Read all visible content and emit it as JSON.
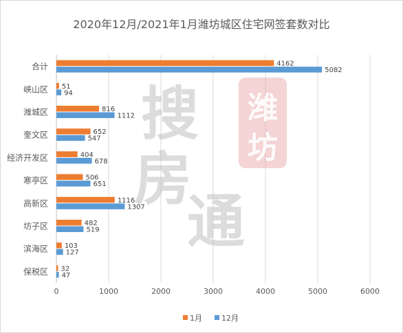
{
  "chart_data": {
    "type": "bar",
    "orientation": "horizontal",
    "title": "2020年12月/2021年1月潍坊城区住宅网签套数对比",
    "categories": [
      "合计",
      "峡山区",
      "潍城区",
      "奎文区",
      "经济开发区",
      "寒亭区",
      "高新区",
      "坊子区",
      "滨海区",
      "保税区"
    ],
    "series": [
      {
        "name": "1月",
        "color": "#ED7D31",
        "values": [
          4162,
          51,
          816,
          652,
          404,
          506,
          1116,
          482,
          103,
          32
        ]
      },
      {
        "name": "12月",
        "color": "#5B9BD5",
        "values": [
          5082,
          94,
          1112,
          547,
          678,
          651,
          1307,
          519,
          127,
          47
        ]
      }
    ],
    "xlim": [
      0,
      6000
    ],
    "xticks": [
      "0",
      "1000",
      "2000",
      "3000",
      "4000",
      "5000",
      "6000"
    ],
    "grid": "vertical",
    "legend": "bottom",
    "data_labels": true
  },
  "watermark": {
    "brand_chars": [
      "搜",
      "房",
      "通"
    ],
    "seal_chars": [
      "潍",
      "坊"
    ],
    "seal_color": "#E8A7A7"
  }
}
